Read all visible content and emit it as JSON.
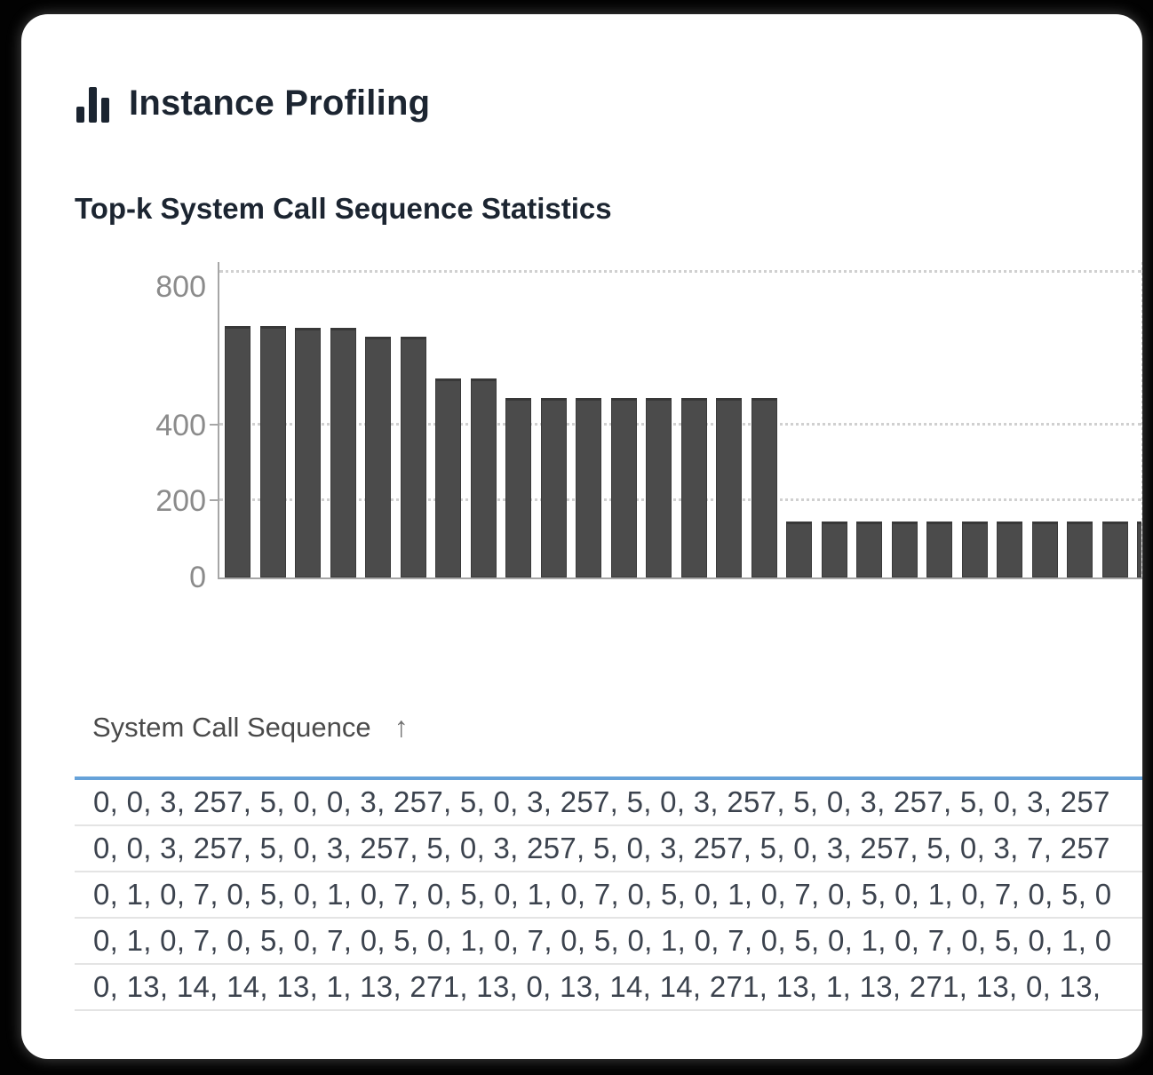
{
  "card": {
    "title": "Instance Profiling"
  },
  "chart_data": {
    "type": "bar",
    "title": "Top-k System Call Sequence Statistics",
    "xlabel": "",
    "ylabel": "",
    "ylim": [
      0,
      830
    ],
    "y_ticks": [
      0,
      200,
      400,
      800
    ],
    "gridlines": [
      200,
      400,
      800
    ],
    "grid": "horizontal dotted",
    "legend": "none",
    "x_tick_labels": [],
    "values": [
      660,
      660,
      655,
      655,
      632,
      632,
      522,
      522,
      472,
      472,
      472,
      472,
      472,
      472,
      472,
      472,
      148,
      148,
      148,
      148,
      148,
      148,
      148,
      148,
      148,
      148,
      148
    ]
  },
  "table": {
    "column_header": "System Call Sequence",
    "sort_direction": "ascending",
    "sort_icon": "↑",
    "rows": [
      "0, 0, 3, 257, 5, 0, 0, 3, 257, 5, 0, 3, 257, 5, 0, 3, 257, 5, 0, 3, 257, 5, 0, 3, 257",
      "0, 0, 3, 257, 5, 0, 3, 257, 5, 0, 3, 257, 5, 0, 3, 257, 5, 0, 3, 257, 5, 0, 3, 7, 257",
      "0, 1, 0, 7, 0, 5, 0, 1, 0, 7, 0, 5, 0, 1, 0, 7, 0, 5, 0, 1, 0, 7, 0, 5, 0, 1, 0, 7, 0, 5, 0",
      "0, 1, 0, 7, 0, 5, 0, 7, 0, 5, 0, 1, 0, 7, 0, 5, 0, 1, 0, 7, 0, 5, 0, 1, 0, 7, 0, 5, 0, 1, 0",
      "0, 13, 14, 14, 13, 1, 13, 271, 13, 0, 13, 14, 14, 271, 13, 1, 13, 271, 13, 0, 13,"
    ]
  },
  "colors": {
    "bar": "#4b4b4b",
    "accent_rule": "#66a2d9",
    "axis_label": "#8b8b8b",
    "title_text": "#1c2531",
    "row_text": "#3c434e"
  }
}
